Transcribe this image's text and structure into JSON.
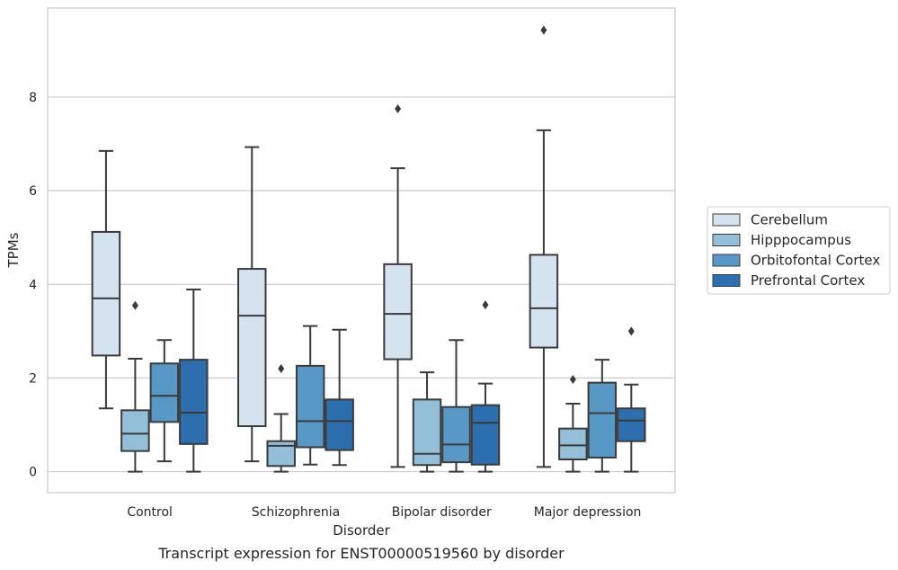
{
  "chart_data": {
    "type": "box",
    "xlabel": "Disorder",
    "ylabel": "TPMs",
    "caption": "Transcript expression for ENST00000519560 by disorder",
    "ylim": [
      -0.45,
      9.9
    ],
    "yticks": [
      0,
      2,
      4,
      6,
      8
    ],
    "grid": "horizontal",
    "legend_placement": "right",
    "categories": [
      "Control",
      "Schizophrenia",
      "Bipolar disorder",
      "Major depression"
    ],
    "series": [
      {
        "name": "Cerebellum",
        "color": "#d5e3f1",
        "boxes": [
          {
            "whisker_low": 1.35,
            "q1": 2.48,
            "median": 3.7,
            "q3": 5.12,
            "whisker_high": 6.85,
            "outliers": []
          },
          {
            "whisker_low": 0.22,
            "q1": 0.97,
            "median": 3.33,
            "q3": 4.33,
            "whisker_high": 6.93,
            "outliers": []
          },
          {
            "whisker_low": 0.1,
            "q1": 2.4,
            "median": 3.37,
            "q3": 4.43,
            "whisker_high": 6.48,
            "outliers": [
              7.75
            ]
          },
          {
            "whisker_low": 0.1,
            "q1": 2.65,
            "median": 3.49,
            "q3": 4.63,
            "whisker_high": 7.29,
            "outliers": [
              9.43
            ]
          }
        ]
      },
      {
        "name": "Hipppocampus",
        "color": "#94bfd9",
        "boxes": [
          {
            "whisker_low": 0.0,
            "q1": 0.44,
            "median": 0.81,
            "q3": 1.31,
            "whisker_high": 2.41,
            "outliers": [
              3.55
            ]
          },
          {
            "whisker_low": 0.0,
            "q1": 0.12,
            "median": 0.55,
            "q3": 0.65,
            "whisker_high": 1.23,
            "outliers": [
              2.2
            ]
          },
          {
            "whisker_low": 0.0,
            "q1": 0.14,
            "median": 0.38,
            "q3": 1.54,
            "whisker_high": 2.12,
            "outliers": []
          },
          {
            "whisker_low": 0.0,
            "q1": 0.26,
            "median": 0.56,
            "q3": 0.92,
            "whisker_high": 1.45,
            "outliers": [
              1.97
            ]
          }
        ]
      },
      {
        "name": "Orbitofontal Cortex",
        "color": "#5898c6",
        "boxes": [
          {
            "whisker_low": 0.22,
            "q1": 1.06,
            "median": 1.62,
            "q3": 2.31,
            "whisker_high": 2.81,
            "outliers": []
          },
          {
            "whisker_low": 0.15,
            "q1": 0.52,
            "median": 1.08,
            "q3": 2.26,
            "whisker_high": 3.11,
            "outliers": []
          },
          {
            "whisker_low": 0.0,
            "q1": 0.2,
            "median": 0.58,
            "q3": 1.38,
            "whisker_high": 2.81,
            "outliers": []
          },
          {
            "whisker_low": 0.0,
            "q1": 0.3,
            "median": 1.25,
            "q3": 1.9,
            "whisker_high": 2.39,
            "outliers": []
          }
        ]
      },
      {
        "name": "Prefrontal Cortex",
        "color": "#2d6fae",
        "boxes": [
          {
            "whisker_low": 0.0,
            "q1": 0.59,
            "median": 1.26,
            "q3": 2.39,
            "whisker_high": 3.89,
            "outliers": []
          },
          {
            "whisker_low": 0.14,
            "q1": 0.46,
            "median": 1.08,
            "q3": 1.54,
            "whisker_high": 3.03,
            "outliers": []
          },
          {
            "whisker_low": 0.0,
            "q1": 0.15,
            "median": 1.04,
            "q3": 1.42,
            "whisker_high": 1.88,
            "outliers": [
              3.56
            ]
          },
          {
            "whisker_low": 0.0,
            "q1": 0.65,
            "median": 1.09,
            "q3": 1.35,
            "whisker_high": 1.86,
            "outliers": [
              3.0
            ]
          }
        ]
      }
    ]
  }
}
